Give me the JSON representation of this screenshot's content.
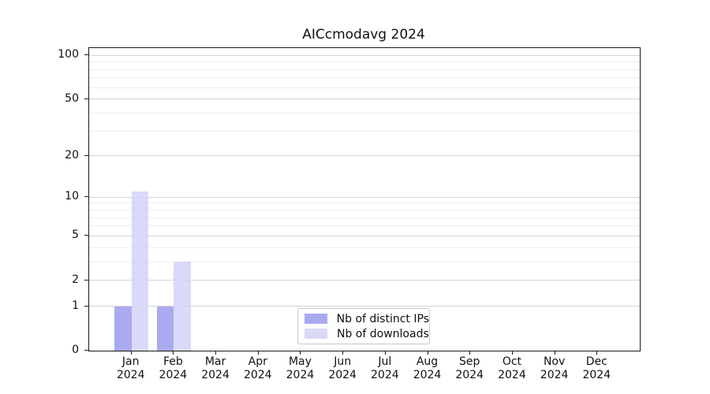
{
  "title": "AICcmodavg 2024",
  "chart_data": {
    "type": "bar",
    "title": "AICcmodavg 2024",
    "categories": [
      "Jan",
      "Feb",
      "Mar",
      "Apr",
      "May",
      "Jun",
      "Jul",
      "Aug",
      "Sep",
      "Oct",
      "Nov",
      "Dec"
    ],
    "category_year": "2024",
    "series": [
      {
        "name": "Nb of distinct IPs",
        "color": "#9b9bed",
        "values": [
          1,
          1,
          0,
          0,
          0,
          0,
          0,
          0,
          0,
          0,
          0,
          0
        ]
      },
      {
        "name": "Nb of downloads",
        "color": "#d2d2f7",
        "values": [
          11,
          3,
          0,
          0,
          0,
          0,
          0,
          0,
          0,
          0,
          0,
          0
        ]
      }
    ],
    "yscale": "log1p",
    "ylim": [
      0,
      112
    ],
    "yticks_major": [
      0,
      1,
      2,
      5,
      10,
      20,
      50,
      100
    ],
    "yticks_minor": [
      3,
      4,
      6,
      7,
      8,
      9,
      30,
      40,
      60,
      70,
      80,
      90
    ],
    "grid": true,
    "legend_position": "lower-center-inside",
    "colors": {
      "grid_major": "#d4d4d4",
      "grid_minor": "#ededed",
      "axis": "#1a1a1a",
      "background": "#ffffff"
    }
  }
}
